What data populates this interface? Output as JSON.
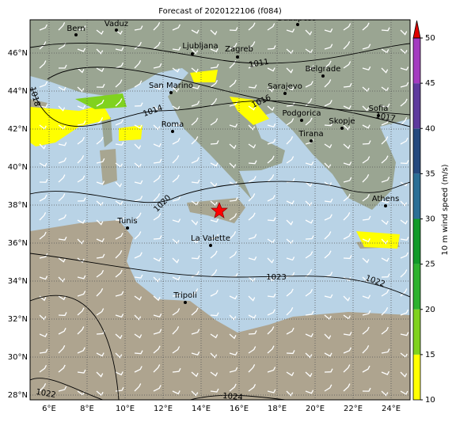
{
  "title": "Forecast of 2020122106 (f084)",
  "map": {
    "lon_ticks": [
      {
        "value": 6,
        "label": "6°E"
      },
      {
        "value": 8,
        "label": "8°E"
      },
      {
        "value": 10,
        "label": "10°E"
      },
      {
        "value": 12,
        "label": "12°E"
      },
      {
        "value": 14,
        "label": "14°E"
      },
      {
        "value": 16,
        "label": "16°E"
      },
      {
        "value": 18,
        "label": "18°E"
      },
      {
        "value": 20,
        "label": "20°E"
      },
      {
        "value": 22,
        "label": "22°E"
      },
      {
        "value": 24,
        "label": "24°E"
      }
    ],
    "lat_ticks": [
      {
        "value": 28,
        "label": "28°N"
      },
      {
        "value": 30,
        "label": "30°N"
      },
      {
        "value": 32,
        "label": "32°N"
      },
      {
        "value": 34,
        "label": "34°N"
      },
      {
        "value": 36,
        "label": "36°N"
      },
      {
        "value": 38,
        "label": "38°N"
      },
      {
        "value": 40,
        "label": "40°N"
      },
      {
        "value": 42,
        "label": "42°N"
      },
      {
        "value": 44,
        "label": "44°N"
      },
      {
        "value": 46,
        "label": "46°N"
      }
    ],
    "cities": [
      "Bern",
      "Vaduz",
      "Budapest",
      "Ljubljana",
      "Zagreb",
      "Belgrade",
      "San Marino",
      "Sarajevo",
      "Sofia",
      "Roma",
      "Podgorica",
      "Skopje",
      "Tirana",
      "Tunis",
      "La Valette",
      "Athens",
      "Tripoli"
    ],
    "isobar_labels": [
      "1011",
      "1014",
      "1016",
      "1017",
      "1018",
      "1020",
      "1023",
      "1022",
      "1022",
      "1024"
    ]
  },
  "colorbar": {
    "label": "10 m wind speed (m/s)",
    "lim": [
      10,
      50
    ],
    "ticks": [
      10,
      15,
      20,
      25,
      30,
      35,
      40,
      45,
      50
    ],
    "colors": [
      "#ffff00",
      "#80d21e",
      "#2eb22e",
      "#129a28",
      "#2c6f96",
      "#26497e",
      "#5e3a9e",
      "#a43cc0"
    ],
    "extend_color": "#e00000"
  }
}
